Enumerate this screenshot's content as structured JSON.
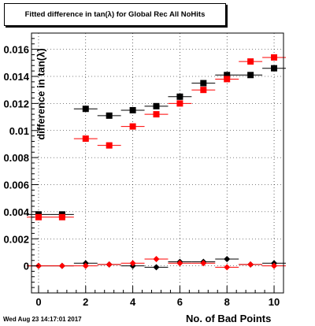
{
  "title": "Fitted difference in tan(λ) for Global Rec All NoHits",
  "timestamp": "Wed Aug 23 14:17:01 2017",
  "chart_data": {
    "type": "scatter",
    "title": "Fitted difference in tan(λ) for Global Rec All NoHits",
    "xlabel": "No. of Bad Points",
    "ylabel": "difference in tan(λ)",
    "xlim": [
      -0.3,
      10.4
    ],
    "ylim": [
      -0.002,
      0.0172
    ],
    "x_ticks": [
      0,
      2,
      4,
      6,
      8,
      10
    ],
    "x_tick_labels": [
      "0",
      "2",
      "4",
      "6",
      "8",
      "10"
    ],
    "y_ticks": [
      0,
      0.002,
      0.004,
      0.006,
      0.008,
      0.01,
      0.012,
      0.014,
      0.016
    ],
    "y_tick_labels": [
      "0",
      "0.002",
      "0.004",
      "0.006",
      "0.008",
      "0.01",
      "0.012",
      "0.014",
      "0.016"
    ],
    "grid": true,
    "series": [
      {
        "color": "#000000",
        "marker": "square",
        "x": [
          0,
          1,
          2,
          3,
          4,
          5,
          6,
          7,
          8,
          9,
          10
        ],
        "y": [
          0.0038,
          0.0038,
          0.0116,
          0.0111,
          0.0115,
          0.0118,
          0.0125,
          0.0135,
          0.0141,
          0.0141,
          0.0146
        ]
      },
      {
        "color": "#ff0000",
        "marker": "square",
        "x": [
          0,
          1,
          2,
          3,
          4,
          5,
          6,
          7,
          8,
          9,
          10
        ],
        "y": [
          0.0036,
          0.0036,
          0.0094,
          0.0089,
          0.0103,
          0.0112,
          0.012,
          0.013,
          0.0138,
          0.0151,
          0.0154
        ]
      },
      {
        "color": "#000000",
        "marker": "diamond",
        "x": [
          0,
          1,
          2,
          3,
          4,
          5,
          6,
          7,
          8,
          9,
          10
        ],
        "y": [
          0.0,
          0.0,
          0.0002,
          0.0001,
          0.0,
          -0.0001,
          0.0003,
          0.0003,
          0.0005,
          0.0001,
          0.0002
        ]
      },
      {
        "color": "#ff0000",
        "marker": "diamond",
        "x": [
          0,
          1,
          2,
          3,
          4,
          5,
          6,
          7,
          8,
          9,
          10
        ],
        "y": [
          0.0,
          0.0,
          0.0,
          0.0001,
          0.0002,
          0.0005,
          0.0002,
          0.0002,
          -0.0001,
          0.0001,
          0.0
        ]
      }
    ]
  }
}
